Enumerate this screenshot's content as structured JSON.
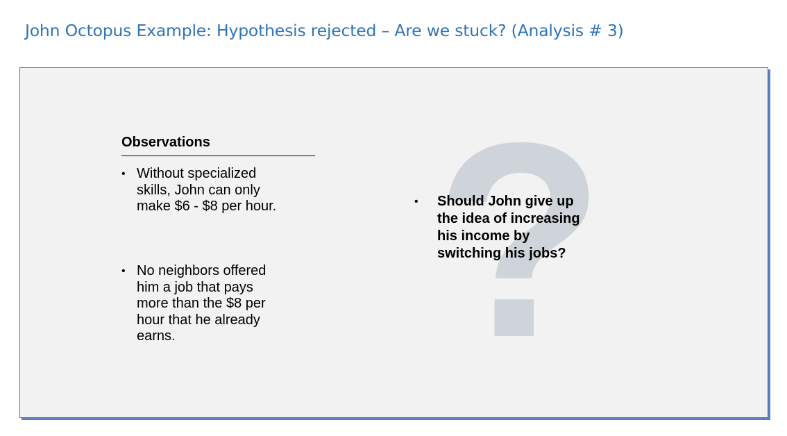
{
  "slide": {
    "title": "John Octopus Example: Hypothesis rejected – Are we stuck? (Analysis # 3)"
  },
  "observations": {
    "heading": "Observations",
    "bullet_char": "•",
    "items": [
      "Without specialized skills, John can only make $6 - $8 per hour.",
      "No neighbors offered him a job that pays more than the $8 per hour that he already earns."
    ]
  },
  "question": {
    "bullet_char": "•",
    "text": "Should John give up the idea of increasing his income by switching his jobs?",
    "graphic_glyph": "?"
  },
  "colors": {
    "title": "#2e75b6",
    "panel_background": "#f2f2f2",
    "panel_border": "#4472c4",
    "question_mark": "#cfd4da"
  }
}
